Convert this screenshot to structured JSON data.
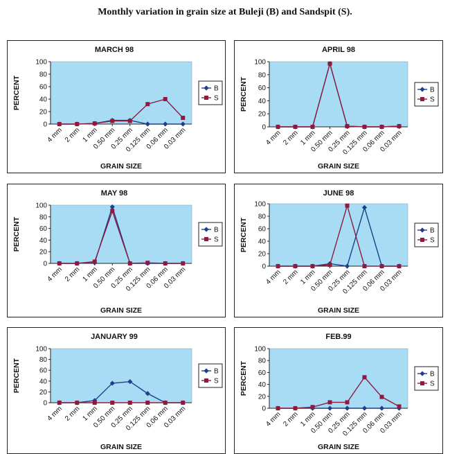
{
  "page_title": "Monthly variation in grain size at Buleji (B) and Sandspit (S).",
  "colors": {
    "plot_bg": "#a8dcf5",
    "series_B": "#1f3f8a",
    "series_S": "#8e1b3f",
    "axis": "#222222"
  },
  "chart_data": [
    {
      "type": "line",
      "title": "MARCH 98",
      "xlabel": "GRAIN SIZE",
      "ylabel": "PERCENT",
      "ylim": [
        0,
        100
      ],
      "yticks": [
        0,
        20,
        40,
        60,
        80,
        100
      ],
      "categories": [
        "4 mm",
        "2 mm",
        "1 mm",
        "0.50 mm",
        "0.25 mm",
        "0.125 mm",
        "0.06 mm",
        "0.03 mm"
      ],
      "legend": "right",
      "series": [
        {
          "name": "B",
          "values": [
            0,
            0,
            1,
            6,
            6,
            0,
            0,
            0
          ]
        },
        {
          "name": "S",
          "values": [
            0,
            0,
            1,
            5,
            5,
            32,
            40,
            10
          ]
        }
      ]
    },
    {
      "type": "line",
      "title": "APRIL 98",
      "xlabel": "GRAIN SIZE",
      "ylabel": "PERCENT",
      "ylim": [
        0,
        100
      ],
      "yticks": [
        0,
        20,
        40,
        60,
        80,
        100
      ],
      "categories": [
        "4 mm",
        "2 mm",
        "1 mm",
        "0.50 mm",
        "0.25 mm",
        "0.125 mm",
        "0.06 mm",
        "0.03 mm"
      ],
      "legend": "right",
      "series": [
        {
          "name": "B",
          "values": [
            0,
            0,
            0,
            97,
            1,
            0,
            0,
            1
          ]
        },
        {
          "name": "S",
          "values": [
            0,
            0,
            0,
            97,
            1,
            0,
            0,
            1
          ]
        }
      ]
    },
    {
      "type": "line",
      "title": "MAY 98",
      "xlabel": "GRAIN SIZE",
      "ylabel": "PERCENT",
      "ylim": [
        0,
        100
      ],
      "yticks": [
        0,
        20,
        40,
        60,
        80,
        100
      ],
      "categories": [
        "4 mm",
        "2 mm",
        "1 mm",
        "0.50 mm",
        "0.25 mm",
        "0.125 mm",
        "0.06 mm",
        "0.03 mm"
      ],
      "legend": "right",
      "series": [
        {
          "name": "B",
          "values": [
            0,
            0,
            1,
            97,
            0,
            0,
            0,
            0
          ]
        },
        {
          "name": "S",
          "values": [
            0,
            0,
            3,
            90,
            0,
            1,
            0,
            0
          ]
        }
      ]
    },
    {
      "type": "line",
      "title": "JUNE 98",
      "xlabel": "GRAIN SIZE",
      "ylabel": "PERCENT",
      "ylim": [
        0,
        100
      ],
      "yticks": [
        0,
        20,
        40,
        60,
        80,
        100
      ],
      "categories": [
        "4 mm",
        "2 mm",
        "1 mm",
        "0.50 mm",
        "0.25 mm",
        "0.125 mm",
        "0.06 mm",
        "0.03 mm"
      ],
      "legend": "right",
      "series": [
        {
          "name": "B",
          "values": [
            0,
            0,
            0,
            4,
            0,
            94,
            0,
            0
          ]
        },
        {
          "name": "S",
          "values": [
            0,
            0,
            0,
            2,
            97,
            0,
            0,
            0
          ]
        }
      ]
    },
    {
      "type": "line",
      "title": "JANUARY 99",
      "xlabel": "GRAIN SIZE",
      "ylabel": "PERCENT",
      "ylim": [
        0,
        100
      ],
      "yticks": [
        0,
        20,
        40,
        60,
        80,
        100
      ],
      "categories": [
        "4 mm",
        "2 mm",
        "1 mm",
        "0.50 mm",
        "0.25 mm",
        "0.125 mm",
        "0.06 mm",
        "0.03 mm"
      ],
      "legend": "right",
      "series": [
        {
          "name": "B",
          "values": [
            0,
            0,
            4,
            36,
            39,
            17,
            0,
            0
          ]
        },
        {
          "name": "S",
          "values": [
            0,
            0,
            0,
            0,
            0,
            0,
            0,
            0
          ]
        }
      ]
    },
    {
      "type": "line",
      "title": "FEB.99",
      "xlabel": "GRAIN SIZE",
      "ylabel": "PERCENT",
      "ylim": [
        0,
        100
      ],
      "yticks": [
        0,
        20,
        40,
        60,
        80,
        100
      ],
      "categories": [
        "4 mm",
        "2 mm",
        "1 mm",
        "0.50 mm",
        "0.25 mm",
        "0.125 mm",
        "0.06 mm",
        "0.03 mm"
      ],
      "legend": "right",
      "series": [
        {
          "name": "B",
          "values": [
            0,
            0,
            0,
            0,
            0,
            0,
            0,
            0
          ]
        },
        {
          "name": "S",
          "values": [
            0,
            0,
            2,
            10,
            10,
            52,
            19,
            3
          ]
        }
      ]
    }
  ]
}
